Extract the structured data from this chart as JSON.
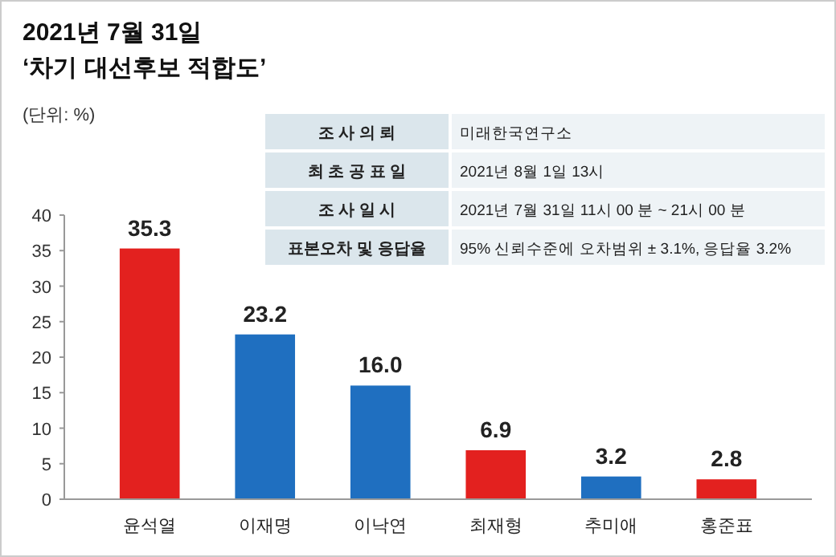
{
  "chart_data": {
    "type": "bar",
    "title": "2021년 7월 31일",
    "subtitle": "‘차기 대선후보 적합도’",
    "ylabel": "(단위: %)",
    "categories": [
      "윤석열",
      "이재명",
      "이낙연",
      "최재형",
      "추미애",
      "홍준표"
    ],
    "values": [
      35.3,
      23.2,
      16.0,
      6.9,
      3.2,
      2.8
    ],
    "colors": [
      "#e3211f",
      "#1f6fc0",
      "#1f6fc0",
      "#e3211f",
      "#1f6fc0",
      "#e3211f"
    ],
    "ylim": [
      0,
      40
    ],
    "yticks": [
      0,
      5,
      10,
      15,
      20,
      25,
      30,
      35,
      40
    ],
    "value_labels": [
      "35.3",
      "23.2",
      "16.0",
      "6.9",
      "3.2",
      "2.8"
    ],
    "annotations": [
      "조 사 의 뢰",
      "미래한국연구소",
      "최 초 공 표 일",
      "2021년 8월 1일 13시",
      "조 사 일 시",
      "2021년 7월 31일 11시 00 분 ~ 21시 00 분",
      "표본오차 및 응답율",
      "95% 신뢰수준에 오차범위 ± 3.1%, 응답율 3.2%"
    ]
  }
}
